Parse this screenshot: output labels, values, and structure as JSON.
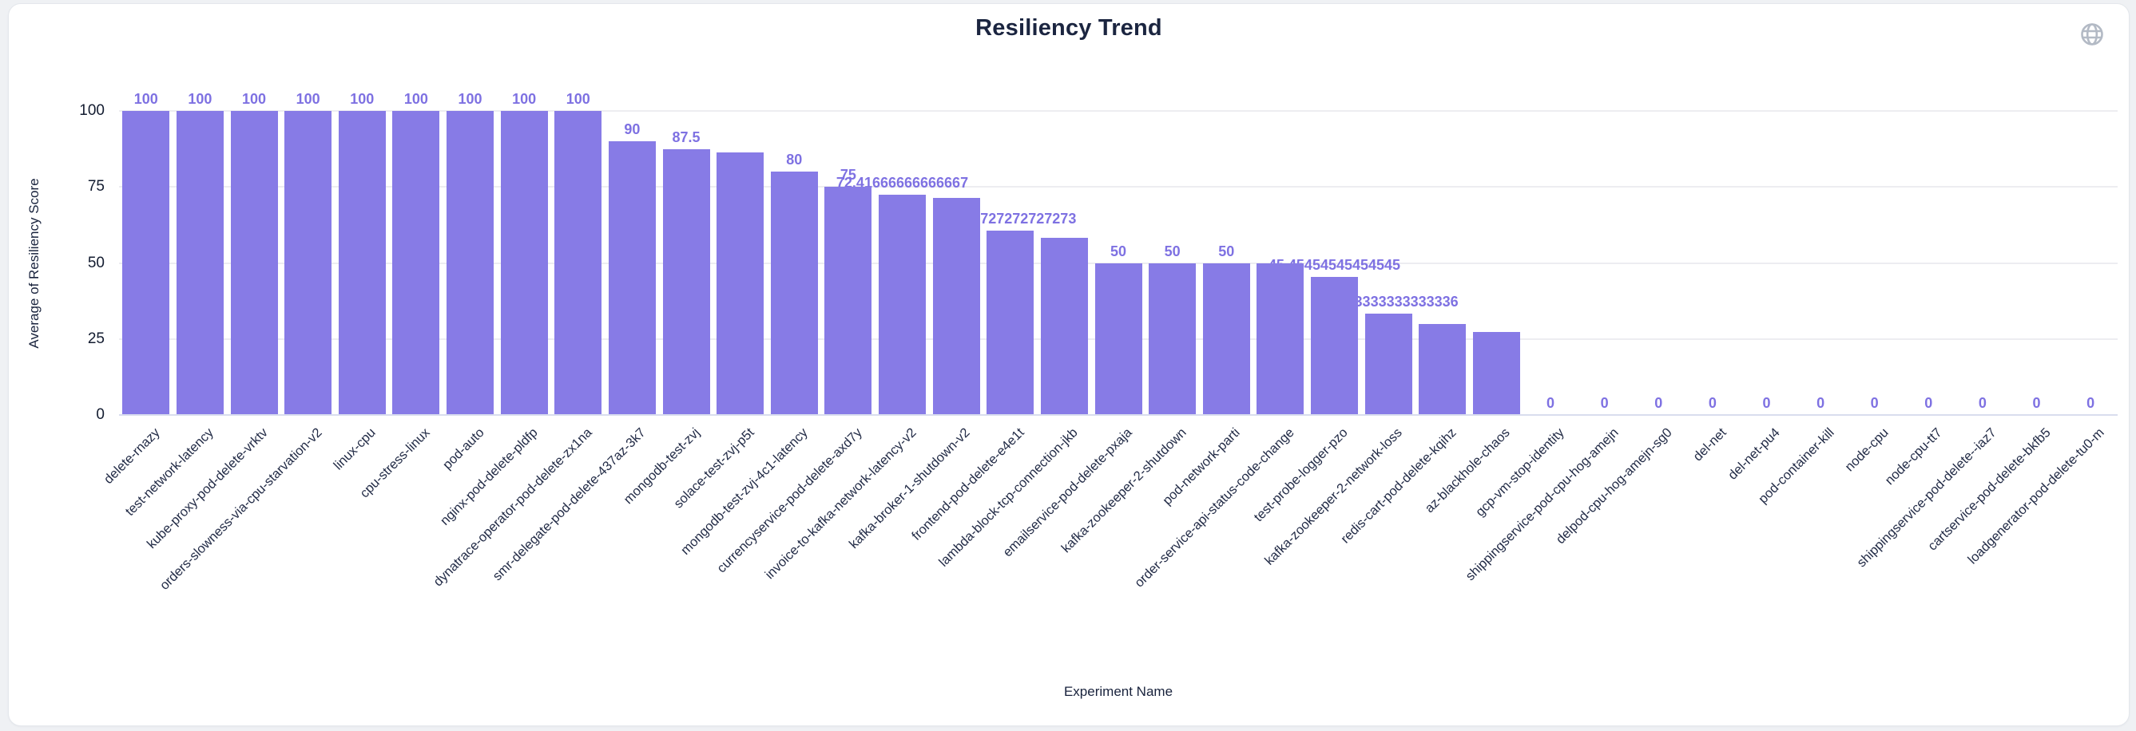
{
  "card": {
    "title": "Resiliency Trend"
  },
  "icons": {
    "globe": "globe-icon"
  },
  "chart_data": {
    "type": "bar",
    "title": "Resiliency Trend",
    "xlabel": "Experiment Name",
    "ylabel": "Average of Resiliency Score",
    "ylim": [
      0,
      100
    ],
    "yticks": [
      0,
      25,
      50,
      75,
      100
    ],
    "grid": "horizontal",
    "legend": "none",
    "bar_color": "#877be6",
    "value_label_color": "#7e71e2",
    "categories": [
      "delete-rnazy",
      "test-network-latency",
      "kube-proxy-pod-delete-vrktv",
      "orders-slowness-via-cpu-starvation-v2",
      "linux-cpu",
      "cpu-stress-linux",
      "pod-auto",
      "nginx-pod-delete-pldfp",
      "dynatrace-operator-pod-delete-zx1na",
      "smr-delegate-pod-delete-437az-3k7",
      "mongodb-test-zvj",
      "solace-test-zvj-p5t",
      "mongodb-test-zvj-4c1-latency",
      "currencyservice-pod-delete-axd7y",
      "invoice-to-kafka-network-latency-v2",
      "kafka-broker-1-shutdown-v2",
      "frontend-pod-delete-e4e1t",
      "lambda-block-tcp-connection-jkb",
      "emailservice-pod-delete-pxaja",
      "kafka-zookeeper-2-shutdown",
      "pod-network-parti",
      "order-service-api-status-code-change",
      "test-probe-logger-pzo",
      "kafka-zookeeper-2-network-loss",
      "redis-cart-pod-delete-kqihz",
      "az-blackhole-chaos",
      "gcp-vm-stop-identity",
      "shippingservice-pod-cpu-hog-amejn",
      "delpod-cpu-hog-amejn-sg0",
      "del-net",
      "del-net-pu4",
      "pod-container-kill",
      "node-cpu",
      "node-cpu-tt7",
      "shippingservice-pod-delete--iaz7",
      "cartservice-pod-delete-bkfb5",
      "loadgenerator-pod-delete-tu0-m"
    ],
    "values": [
      100,
      100,
      100,
      100,
      100,
      100,
      100,
      100,
      100,
      90,
      87.5,
      86.36363636363636,
      80,
      75,
      72.41666666666667,
      71.42857142857143,
      60.72727272727273,
      58.33333333333333,
      50,
      50,
      50,
      50,
      45.45454545454545,
      33.333333333333336,
      30,
      27.27272727272727,
      0,
      0,
      0,
      0,
      0,
      0,
      0,
      0,
      0,
      0,
      0
    ],
    "value_labels": [
      "100",
      "100",
      "100",
      "100",
      "100",
      "100",
      "100",
      "100",
      "100",
      "90",
      "87.5",
      null,
      "80",
      "75",
      "72.41666666666667",
      null,
      "60.72727272727273",
      null,
      "50",
      "50",
      "50",
      null,
      "45.45454545454545",
      "33.333333333333336",
      null,
      null,
      "0",
      "0",
      "0",
      "0",
      "0",
      "0",
      "0",
      "0",
      "0",
      "0",
      "0"
    ]
  },
  "geometry_note": "labels for some bars are hidden by the chart's overlap rule; long labels are partially occluded by taller neighboring bars"
}
